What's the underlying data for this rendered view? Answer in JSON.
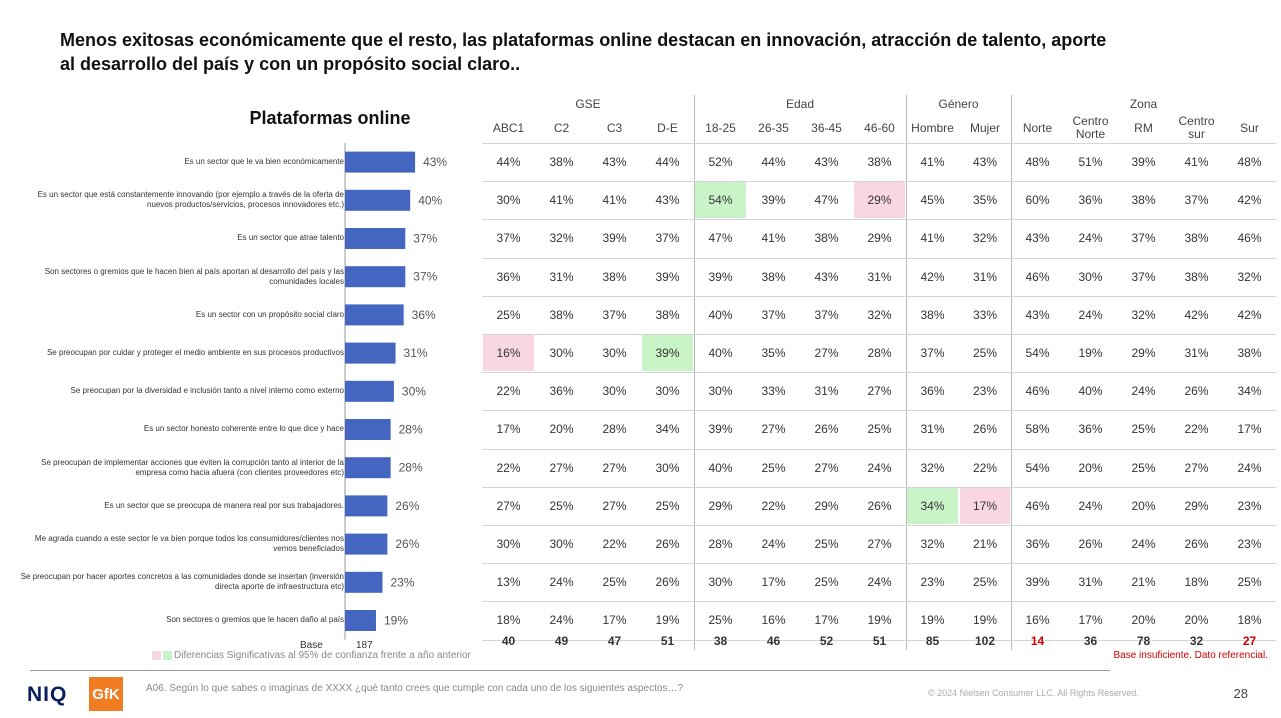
{
  "headline": "Menos exitosas económicamente que el resto, las plataformas online destacan en innovación, atracción de talento, aporte al desarrollo del país y con un propósito social claro..",
  "chart_data": {
    "type": "bar",
    "orientation": "horizontal",
    "title": "Plataformas online",
    "categories": [
      "Es un sector que le va bien económicamente",
      "Es un sector que está constantemente innovando (por ejemplo a través de la oferta de nuevos productos/servicios, procesos innovadores etc.)",
      "Es un sector que atrae talento",
      "Son sectores o gremios que le hacen bien al país aportan al desarrollo del país y las comunidades locales",
      "Es un sector con un propósito social claro",
      "Se preocupan por cuidar y proteger el medio ambiente en sus procesos productivos",
      "Se preocupan por la diversidad e inclusión tanto a nivel interno como externo",
      "Es un sector honesto coherente entre lo que dice y hace",
      "Se preocupan de implementar acciones que eviten la corrupción tanto al interior de la empresa como hacia afuera (con clientes proveedores etc)",
      "Es un sector que se preocupa de manera real por sus trabajadores.",
      "Me agrada cuando a este sector le va bien porque todos los consumidores/clientes nos vemos beneficiados",
      "Se preocupan por hacer aportes concretos a las comunidades donde se insertan (inversión directa aporte de infraestructura etc)",
      "Son sectores o gremios que le hacen daño al país"
    ],
    "values": [
      43,
      40,
      37,
      37,
      36,
      31,
      30,
      28,
      28,
      26,
      26,
      23,
      19
    ],
    "value_labels": [
      "43%",
      "40%",
      "37%",
      "37%",
      "36%",
      "31%",
      "30%",
      "28%",
      "28%",
      "26%",
      "26%",
      "23%",
      "19%"
    ],
    "bar_color": "#4466c0",
    "base_label": "Base",
    "base_value": "187",
    "table": {
      "groups": [
        {
          "label": "GSE",
          "span": 4
        },
        {
          "label": "Edad",
          "span": 4
        },
        {
          "label": "Género",
          "span": 2
        },
        {
          "label": "Zona",
          "span": 5
        }
      ],
      "columns": [
        "ABC1",
        "C2",
        "C3",
        "D-E",
        "18-25",
        "26-35",
        "36-45",
        "46-60",
        "Hombre",
        "Mujer",
        "Norte",
        "Centro\nNorte",
        "RM",
        "Centro\nsur",
        "Sur"
      ],
      "rows": [
        [
          "44%",
          "38%",
          "43%",
          "44%",
          "52%",
          "44%",
          "43%",
          "38%",
          "41%",
          "43%",
          "48%",
          "51%",
          "39%",
          "41%",
          "48%"
        ],
        [
          "30%",
          "41%",
          "41%",
          "43%",
          "54%",
          "39%",
          "47%",
          "29%",
          "45%",
          "35%",
          "60%",
          "36%",
          "38%",
          "37%",
          "42%"
        ],
        [
          "37%",
          "32%",
          "39%",
          "37%",
          "47%",
          "41%",
          "38%",
          "29%",
          "41%",
          "32%",
          "43%",
          "24%",
          "37%",
          "38%",
          "46%"
        ],
        [
          "36%",
          "31%",
          "38%",
          "39%",
          "39%",
          "38%",
          "43%",
          "31%",
          "42%",
          "31%",
          "46%",
          "30%",
          "37%",
          "38%",
          "32%"
        ],
        [
          "25%",
          "38%",
          "37%",
          "38%",
          "40%",
          "37%",
          "37%",
          "32%",
          "38%",
          "33%",
          "43%",
          "24%",
          "32%",
          "42%",
          "42%"
        ],
        [
          "16%",
          "30%",
          "30%",
          "39%",
          "40%",
          "35%",
          "27%",
          "28%",
          "37%",
          "25%",
          "54%",
          "19%",
          "29%",
          "31%",
          "38%"
        ],
        [
          "22%",
          "36%",
          "30%",
          "30%",
          "30%",
          "33%",
          "31%",
          "27%",
          "36%",
          "23%",
          "46%",
          "40%",
          "24%",
          "26%",
          "34%"
        ],
        [
          "17%",
          "20%",
          "28%",
          "34%",
          "39%",
          "27%",
          "26%",
          "25%",
          "31%",
          "26%",
          "58%",
          "36%",
          "25%",
          "22%",
          "17%"
        ],
        [
          "22%",
          "27%",
          "27%",
          "30%",
          "40%",
          "25%",
          "27%",
          "24%",
          "32%",
          "22%",
          "54%",
          "20%",
          "25%",
          "27%",
          "24%"
        ],
        [
          "27%",
          "25%",
          "27%",
          "25%",
          "29%",
          "22%",
          "29%",
          "26%",
          "34%",
          "17%",
          "46%",
          "24%",
          "20%",
          "29%",
          "23%"
        ],
        [
          "30%",
          "30%",
          "22%",
          "26%",
          "28%",
          "24%",
          "25%",
          "27%",
          "32%",
          "21%",
          "36%",
          "26%",
          "24%",
          "26%",
          "23%"
        ],
        [
          "13%",
          "24%",
          "25%",
          "26%",
          "30%",
          "17%",
          "25%",
          "24%",
          "23%",
          "25%",
          "39%",
          "31%",
          "21%",
          "18%",
          "25%"
        ],
        [
          "18%",
          "24%",
          "17%",
          "19%",
          "25%",
          "16%",
          "17%",
          "19%",
          "19%",
          "19%",
          "16%",
          "17%",
          "20%",
          "20%",
          "18%"
        ]
      ],
      "highlights": [
        {
          "row": 1,
          "col": 4,
          "type": "green"
        },
        {
          "row": 1,
          "col": 7,
          "type": "pink"
        },
        {
          "row": 5,
          "col": 0,
          "type": "pink"
        },
        {
          "row": 5,
          "col": 3,
          "type": "green"
        },
        {
          "row": 9,
          "col": 8,
          "type": "green"
        },
        {
          "row": 9,
          "col": 9,
          "type": "pink"
        }
      ],
      "bases": [
        "40",
        "49",
        "47",
        "51",
        "38",
        "46",
        "52",
        "51",
        "85",
        "102",
        "14",
        "36",
        "78",
        "32",
        "27"
      ],
      "insufficient_base_cols": [
        10,
        14
      ]
    }
  },
  "legend": {
    "text": "Diferencias Significativas al 95% de confianza frente a año anterior",
    "pink_color": "#f9d6e3",
    "green_color": "#c9f4c7"
  },
  "base_note": "Base insuficiente. Dato referencial.",
  "footer": {
    "niq_logo": "NIQ",
    "gfk_logo": "GfK",
    "question": "A06. Según lo que sabes o imaginas de XXXX ¿qué tanto crees que cumple con cada uno de los siguientes aspectos…?",
    "copyright": "© 2024 Nielsen Consumer LLC. All Rights Reserved.",
    "page_number": "28"
  }
}
